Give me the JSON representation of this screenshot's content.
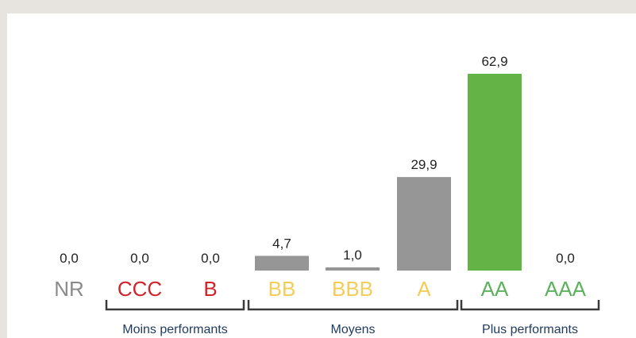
{
  "chart_data": {
    "type": "bar",
    "categories": [
      "NR",
      "CCC",
      "B",
      "BB",
      "BBB",
      "A",
      "AA",
      "AAA"
    ],
    "values": [
      0.0,
      0.0,
      0.0,
      4.7,
      1.0,
      29.9,
      62.9,
      0.0
    ],
    "value_labels": [
      "0,0",
      "0,0",
      "0,0",
      "4,7",
      "1,0",
      "29,9",
      "62,9",
      "0,0"
    ],
    "ylim": [
      0,
      62.9
    ],
    "grid": false,
    "bar_colors": [
      "#969696",
      "#969696",
      "#969696",
      "#969696",
      "#969696",
      "#969696",
      "#63b346",
      "#969696"
    ],
    "category_colors": [
      "#8a8a8a",
      "#d0232a",
      "#d0232a",
      "#f3cd57",
      "#f3cd57",
      "#f3cd57",
      "#5cb25d",
      "#5cb25d"
    ],
    "groups": [
      {
        "label": "Moins performants",
        "categories": [
          "CCC",
          "B"
        ]
      },
      {
        "label": "Moyens",
        "categories": [
          "BB",
          "BBB",
          "A"
        ]
      },
      {
        "label": "Plus performants",
        "categories": [
          "AA",
          "AAA"
        ]
      }
    ]
  },
  "colors": {
    "background": "#e7e3df",
    "panel": "#ffffff",
    "bracket": "#3a3a3a",
    "group_text": "#1f3a5f"
  }
}
